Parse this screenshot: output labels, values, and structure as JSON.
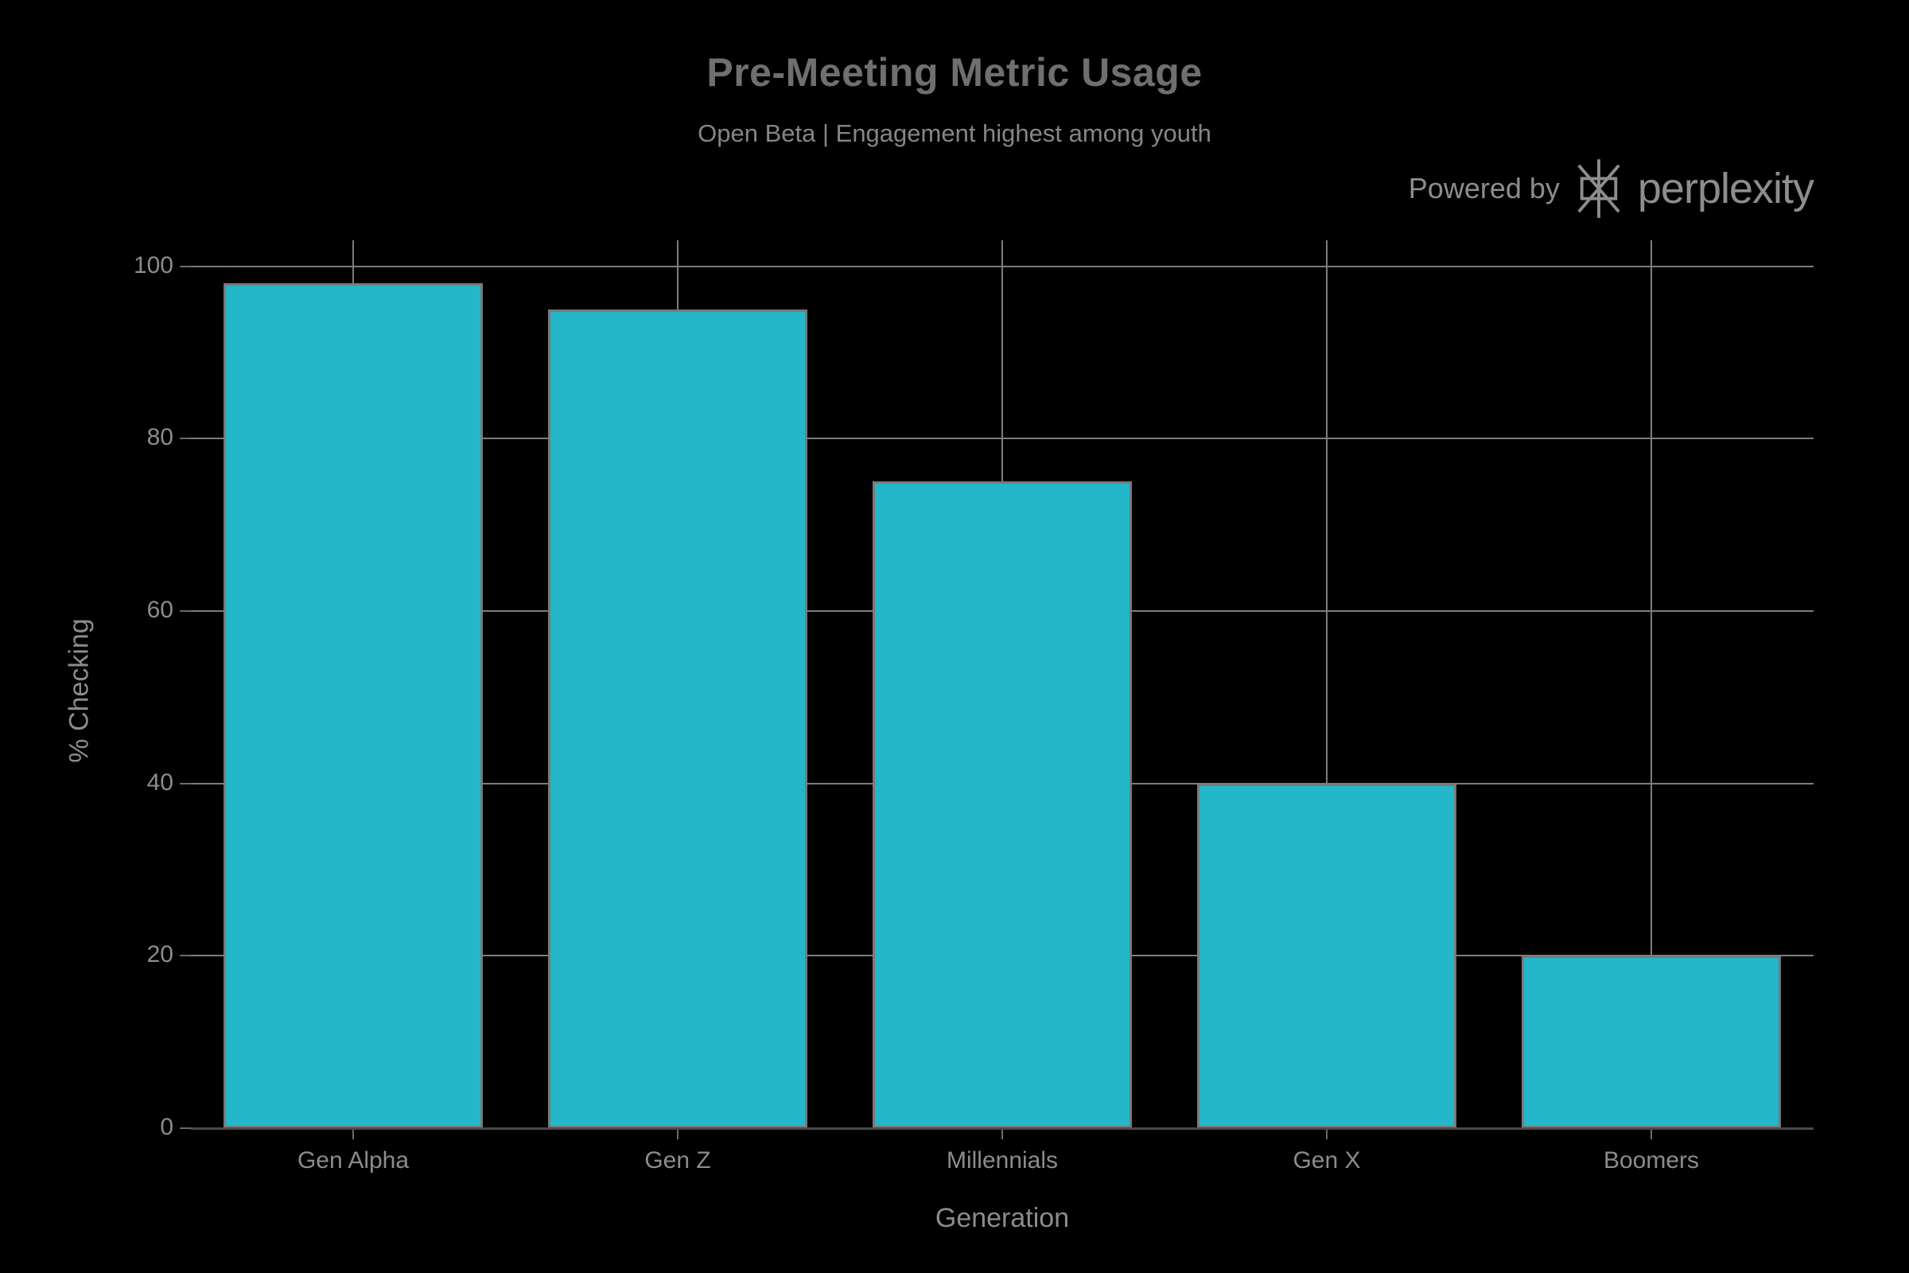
{
  "chart_data": {
    "type": "bar",
    "title": "Pre-Meeting Metric Usage",
    "subtitle": "Open Beta | Engagement highest among youth",
    "categories": [
      "Gen Alpha",
      "Gen Z",
      "Millennials",
      "Gen X",
      "Boomers"
    ],
    "values": [
      98,
      95,
      75,
      40,
      20
    ],
    "xlabel": "Generation",
    "ylabel": "% Checking",
    "ylim": [
      0,
      103
    ],
    "yticks": [
      0,
      20,
      40,
      60,
      80,
      100
    ],
    "grid": true,
    "legend": "none",
    "colors": {
      "background": "#000000",
      "bar_fill": "#24b6c9",
      "bar_edge": "#7a7a7a",
      "gridline": "#7d7d7d",
      "axis_line": "#4a4a4a",
      "tick_mark": "#6a6a6a",
      "tick_label": "#8c8c8c",
      "title": "#6f6f6f",
      "subtitle": "#868686",
      "branding": "#8d8d8d"
    }
  },
  "branding": {
    "powered_by": "Powered by",
    "brand": "perplexity",
    "logo": "perplexity-asterisk-logo"
  }
}
